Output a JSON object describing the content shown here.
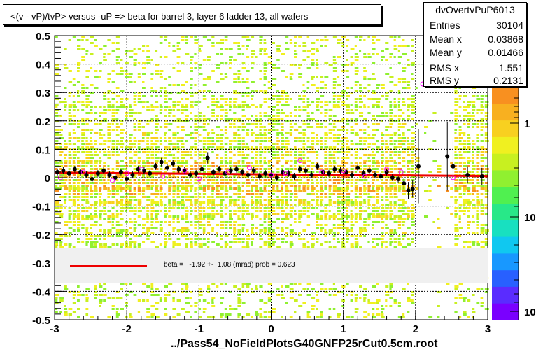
{
  "title": "<(v - vP)/tvP> versus  -uP => beta for barrel 3, layer 6 ladder 13, all wafers",
  "stats": {
    "name": "dvOvertvPuP6013",
    "rows": [
      {
        "label": "Entries",
        "value": "30104"
      },
      {
        "label": "Mean x",
        "value": "0.03868"
      },
      {
        "label": "Mean y",
        "value": "0.01466"
      },
      {
        "label": "RMS x",
        "value": "1.551"
      },
      {
        "label": "RMS y",
        "value": "0.2131"
      }
    ]
  },
  "fit_legend": "beta =   -1.92 +-  1.08 (mrad) prob = 0.623",
  "footer": "../Pass54_NoFieldPlotsG40GNFP25rCut0.5cm.root",
  "colors": {
    "fit_line": "#ee0000",
    "profile_points": "#000000",
    "open_markers": "#ff00ff",
    "legend_bg": "#f0f0f0",
    "palette": [
      "#7a00ff",
      "#5a2cff",
      "#2860ff",
      "#1898ff",
      "#10c8f0",
      "#18e0c0",
      "#28e888",
      "#50f050",
      "#90f030",
      "#c8f020",
      "#f0f020",
      "#f8d020",
      "#f8b020",
      "#f89020"
    ]
  },
  "chart_data": {
    "type": "heatmap",
    "title": "<(v - vP)/tvP> versus  -uP => beta for barrel 3, layer 6 ladder 13, all wafers",
    "xlabel": "",
    "ylabel": "",
    "xlim": [
      -3,
      3
    ],
    "ylim": [
      -0.5,
      0.5
    ],
    "x_ticks": [
      "-3",
      "-2",
      "-1",
      "0",
      "1",
      "2",
      "3"
    ],
    "y_ticks": [
      "-0.5",
      "-0.4",
      "-0.3",
      "-0.2",
      "-0.1",
      "0",
      "0.1",
      "0.2",
      "0.3",
      "0.4",
      "0.5"
    ],
    "grid": true,
    "z_scale": "log",
    "colorbar_labels": [
      "1",
      "10",
      "10"
    ],
    "fit": {
      "type": "line",
      "x": [
        -3,
        3
      ],
      "y": [
        0.018,
        0.006
      ]
    },
    "profile": {
      "name": "mean per x bin",
      "x": [
        -2.96,
        -2.88,
        -2.8,
        -2.72,
        -2.64,
        -2.56,
        -2.48,
        -2.4,
        -2.32,
        -2.24,
        -2.16,
        -2.08,
        -2.0,
        -1.92,
        -1.84,
        -1.76,
        -1.68,
        -1.6,
        -1.52,
        -1.44,
        -1.36,
        -1.28,
        -1.2,
        -1.12,
        -1.04,
        -0.96,
        -0.88,
        -0.8,
        -0.72,
        -0.64,
        -0.56,
        -0.48,
        -0.4,
        -0.32,
        -0.24,
        -0.16,
        -0.08,
        0.0,
        0.08,
        0.16,
        0.24,
        0.32,
        0.4,
        0.48,
        0.56,
        0.64,
        0.72,
        0.8,
        0.88,
        0.96,
        1.04,
        1.12,
        1.2,
        1.28,
        1.36,
        1.44,
        1.52,
        1.6,
        1.68,
        1.76,
        1.84,
        1.9,
        1.96,
        2.04,
        2.44,
        2.52,
        2.72,
        2.92
      ],
      "y": [
        0.02,
        0.025,
        0.015,
        0.03,
        0.02,
        0.01,
        -0.005,
        0.015,
        0.025,
        0.01,
        0.0,
        0.02,
        -0.005,
        0.01,
        0.03,
        0.025,
        0.015,
        0.04,
        0.055,
        0.035,
        0.05,
        0.03,
        0.025,
        0.01,
        0.015,
        0.03,
        0.07,
        0.02,
        0.03,
        0.015,
        0.025,
        0.03,
        0.02,
        0.01,
        0.025,
        0.005,
        0.015,
        0.01,
        0.0,
        0.02,
        0.015,
        0.005,
        0.03,
        0.025,
        0.01,
        0.04,
        0.02,
        0.015,
        0.03,
        0.025,
        0.02,
        0.01,
        0.035,
        0.015,
        0.025,
        0.01,
        0.005,
        0.02,
        0.0,
        -0.005,
        -0.02,
        -0.045,
        -0.04,
        0.04,
        0.075,
        0.04,
        0.01,
        0.005
      ],
      "err": [
        0.012,
        0.012,
        0.012,
        0.012,
        0.012,
        0.012,
        0.012,
        0.012,
        0.012,
        0.012,
        0.012,
        0.012,
        0.012,
        0.012,
        0.012,
        0.012,
        0.012,
        0.012,
        0.015,
        0.012,
        0.012,
        0.012,
        0.012,
        0.012,
        0.012,
        0.012,
        0.02,
        0.012,
        0.012,
        0.012,
        0.012,
        0.012,
        0.012,
        0.012,
        0.012,
        0.012,
        0.012,
        0.012,
        0.012,
        0.012,
        0.012,
        0.012,
        0.012,
        0.012,
        0.012,
        0.012,
        0.012,
        0.012,
        0.012,
        0.012,
        0.012,
        0.012,
        0.012,
        0.012,
        0.012,
        0.012,
        0.012,
        0.012,
        0.012,
        0.012,
        0.02,
        0.03,
        0.03,
        0.13,
        0.12,
        0.1,
        0.03,
        0.03
      ]
    },
    "open_markers": {
      "name": "open markers",
      "x": [
        -2.92,
        -2.6,
        -2.2,
        -2.0,
        -1.8,
        -1.5,
        -1.2,
        -1.0,
        -0.6,
        -0.3,
        0.0,
        0.2,
        0.4,
        0.7,
        1.0,
        1.3,
        1.6,
        1.8,
        2.1,
        2.44,
        2.52
      ],
      "y": [
        0.0,
        0.02,
        -0.01,
        0.015,
        0.03,
        0.005,
        0.025,
        -0.005,
        0.02,
        0.035,
        0.01,
        0.015,
        0.06,
        0.02,
        0.025,
        0.005,
        0.03,
        0.02,
        0.33,
        0.33,
        0.0
      ]
    }
  }
}
